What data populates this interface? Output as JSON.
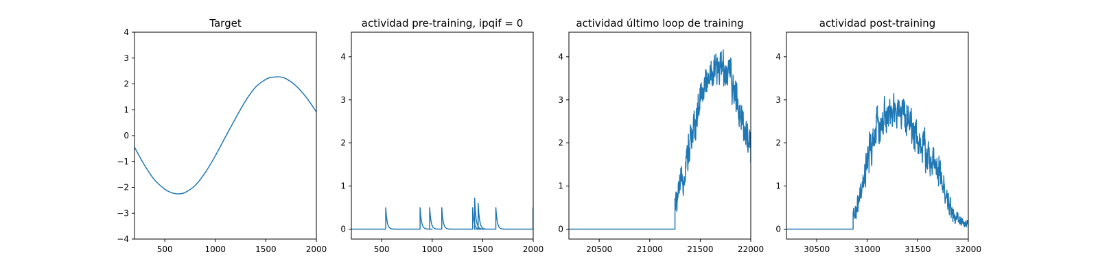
{
  "figure": {
    "background": "#ffffff",
    "line_color": "#1f77b4"
  },
  "chart_data": [
    {
      "type": "line",
      "title": "Target",
      "xlabel": "",
      "ylabel": "",
      "xlim": [
        200,
        2000
      ],
      "ylim": [
        -4,
        4
      ],
      "xticks": [
        500,
        1000,
        1500,
        2000
      ],
      "yticks": [
        -4,
        -3,
        -2,
        -1,
        0,
        1,
        2,
        3,
        4
      ],
      "grid": false,
      "series": [
        {
          "style": "smooth",
          "points": [
            [
              200,
              -0.45
            ],
            [
              300,
              -1.15
            ],
            [
              400,
              -1.72
            ],
            [
              500,
              -2.07
            ],
            [
              550,
              -2.18
            ],
            [
              600,
              -2.24
            ],
            [
              640,
              -2.25
            ],
            [
              700,
              -2.2
            ],
            [
              800,
              -1.93
            ],
            [
              900,
              -1.43
            ],
            [
              1000,
              -0.78
            ],
            [
              1100,
              -0.05
            ],
            [
              1200,
              0.67
            ],
            [
              1300,
              1.35
            ],
            [
              1400,
              1.88
            ],
            [
              1500,
              2.18
            ],
            [
              1550,
              2.25
            ],
            [
              1600,
              2.27
            ],
            [
              1640,
              2.27
            ],
            [
              1700,
              2.2
            ],
            [
              1800,
              1.92
            ],
            [
              1900,
              1.48
            ],
            [
              2000,
              0.92
            ]
          ]
        }
      ]
    },
    {
      "type": "line",
      "title": "actividad pre-training, ipqif = 0",
      "xlabel": "",
      "ylabel": "",
      "xlim": [
        200,
        2000
      ],
      "ylim": [
        -0.23,
        4.57
      ],
      "xticks": [
        500,
        1000,
        1500,
        2000
      ],
      "yticks": [
        0,
        1,
        2,
        3,
        4
      ],
      "grid": false,
      "series": [
        {
          "style": "spikes",
          "baseline": 0,
          "spikes": [
            {
              "x": 540,
              "peak": 0.5
            },
            {
              "x": 880,
              "peak": 0.5
            },
            {
              "x": 975,
              "peak": 0.5
            },
            {
              "x": 1095,
              "peak": 0.5
            },
            {
              "x": 1400,
              "peak": 0.5
            },
            {
              "x": 1420,
              "peak": 0.72
            },
            {
              "x": 1455,
              "peak": 0.6
            },
            {
              "x": 1630,
              "peak": 0.5
            },
            {
              "x": 1998,
              "peak": 0.5
            }
          ]
        }
      ]
    },
    {
      "type": "line",
      "title": "actividad último loop de training",
      "xlabel": "",
      "ylabel": "",
      "xlim": [
        20200,
        22000
      ],
      "ylim": [
        -0.23,
        4.57
      ],
      "xticks": [
        20500,
        21000,
        21500,
        22000
      ],
      "yticks": [
        0,
        1,
        2,
        3,
        4
      ],
      "grid": false,
      "series": [
        {
          "style": "noisy",
          "baseline": 0,
          "onset": 21250,
          "envelope": [
            [
              21250,
              0.55
            ],
            [
              21300,
              0.9
            ],
            [
              21350,
              1.5
            ],
            [
              21400,
              2.0
            ],
            [
              21450,
              2.5
            ],
            [
              21500,
              3.0
            ],
            [
              21550,
              3.4
            ],
            [
              21600,
              3.6
            ],
            [
              21650,
              3.7
            ],
            [
              21700,
              3.75
            ],
            [
              21750,
              3.7
            ],
            [
              21800,
              3.5
            ],
            [
              21850,
              3.1
            ],
            [
              21900,
              2.7
            ],
            [
              21950,
              2.3
            ],
            [
              22000,
              1.9
            ]
          ],
          "peak_max": 4.37,
          "end_value": 1.55
        }
      ]
    },
    {
      "type": "line",
      "title": "actividad post-training",
      "xlabel": "",
      "ylabel": "",
      "xlim": [
        30200,
        32000
      ],
      "ylim": [
        -0.23,
        4.57
      ],
      "xticks": [
        30500,
        31000,
        31500,
        32000
      ],
      "yticks": [
        0,
        1,
        2,
        3,
        4
      ],
      "grid": false,
      "series": [
        {
          "style": "noisy",
          "baseline": 0,
          "onset": 30860,
          "envelope": [
            [
              30860,
              0.3
            ],
            [
              30900,
              0.5
            ],
            [
              30950,
              0.9
            ],
            [
              31000,
              1.5
            ],
            [
              31050,
              2.0
            ],
            [
              31100,
              2.35
            ],
            [
              31150,
              2.5
            ],
            [
              31200,
              2.6
            ],
            [
              31250,
              2.7
            ],
            [
              31300,
              2.75
            ],
            [
              31350,
              2.7
            ],
            [
              31400,
              2.55
            ],
            [
              31450,
              2.3
            ],
            [
              31500,
              2.1
            ],
            [
              31550,
              1.9
            ],
            [
              31600,
              1.7
            ],
            [
              31650,
              1.5
            ],
            [
              31700,
              1.3
            ],
            [
              31750,
              1.0
            ],
            [
              31800,
              0.6
            ],
            [
              31850,
              0.35
            ],
            [
              31900,
              0.2
            ],
            [
              31950,
              0.12
            ],
            [
              32000,
              0.05
            ]
          ],
          "peak_max": 3.4,
          "end_value": 0.05
        }
      ]
    }
  ]
}
